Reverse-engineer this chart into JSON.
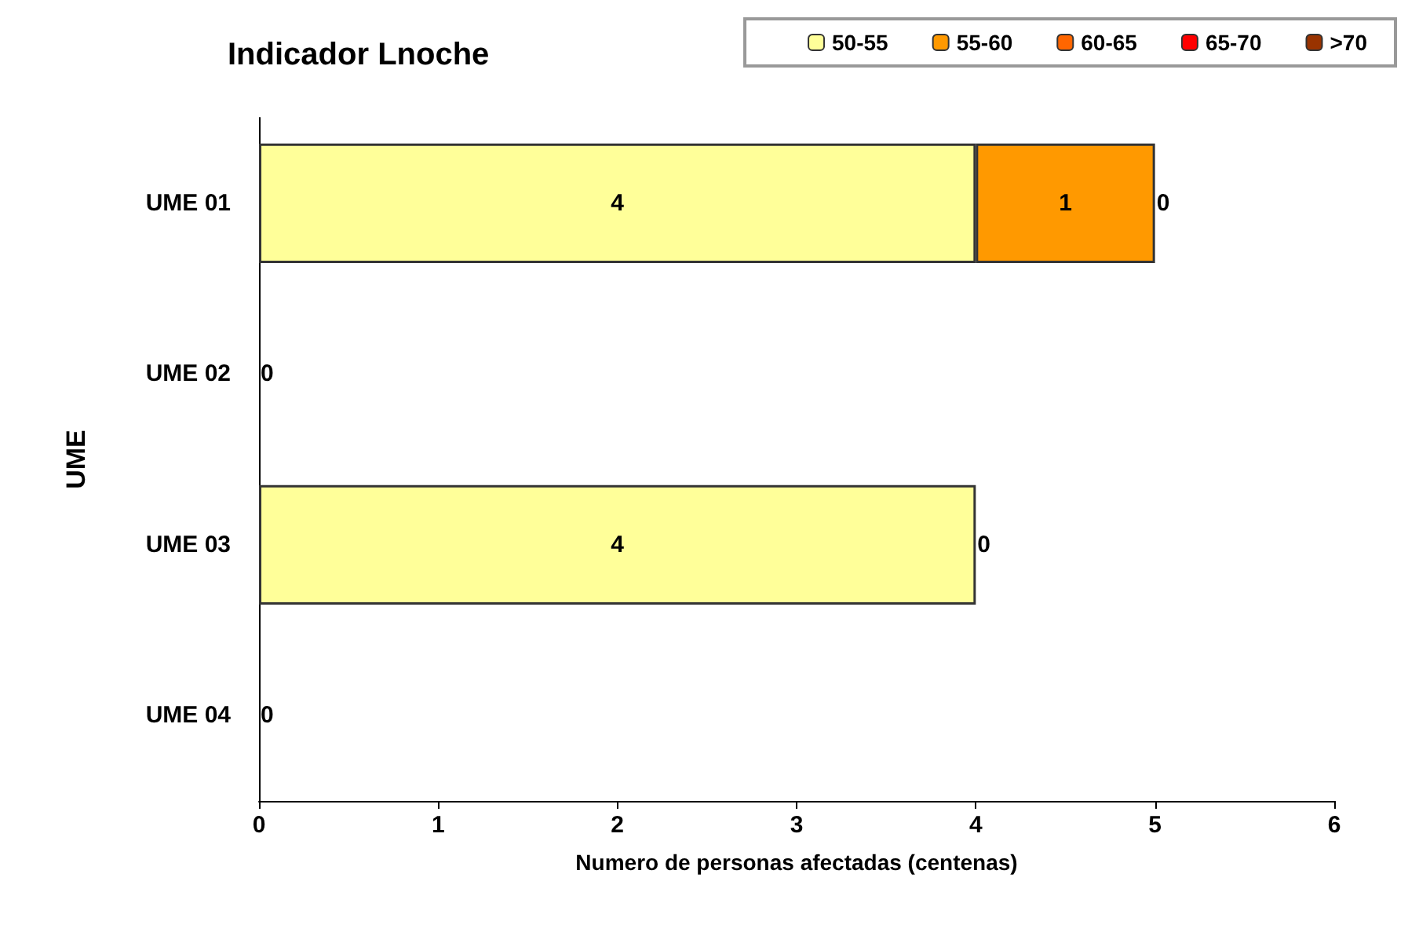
{
  "chart_data": {
    "type": "bar",
    "orientation": "horizontal",
    "stacked": true,
    "title": "Indicador Lnoche",
    "xlabel": "Numero de personas afectadas (centenas)",
    "ylabel": "UME",
    "categories": [
      "UME 01",
      "UME 02",
      "UME 03",
      "UME 04"
    ],
    "xlim": [
      0,
      6
    ],
    "xticks": [
      0,
      1,
      2,
      3,
      4,
      5,
      6
    ],
    "grid": false,
    "legend": "top right",
    "series": [
      {
        "name": "50-55",
        "color": "#ffff99",
        "values": [
          4,
          0,
          4,
          0
        ],
        "value_labels": [
          "4",
          null,
          "4",
          null
        ]
      },
      {
        "name": "55-60",
        "color": "#ff9900",
        "values": [
          1,
          0,
          0,
          0
        ],
        "value_labels": [
          "1",
          null,
          null,
          null
        ]
      },
      {
        "name": "60-65",
        "color": "#ff6600",
        "values": [
          0,
          0,
          0,
          0
        ],
        "value_labels": [
          null,
          null,
          null,
          null
        ]
      },
      {
        "name": "65-70",
        "color": "#ff0000",
        "values": [
          0,
          0,
          0,
          0
        ],
        "value_labels": [
          null,
          null,
          null,
          null
        ]
      },
      {
        "name": ">70",
        "color": "#993300",
        "values": [
          0,
          0,
          0,
          0
        ],
        "value_labels": [
          "0",
          "0",
          "0",
          "0"
        ]
      }
    ]
  }
}
